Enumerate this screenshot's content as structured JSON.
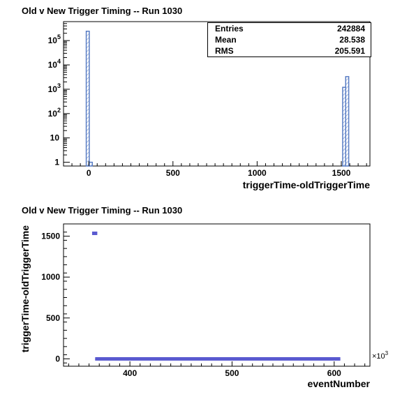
{
  "chart_data": [
    {
      "type": "bar",
      "title": "Old v New Trigger Timing -- Run 1030",
      "xlabel": "triggerTime-oldTriggerTime",
      "ylabel": "",
      "xlim": [
        -150,
        1670
      ],
      "ylim": [
        0.7,
        600000
      ],
      "log_y": true,
      "x_ticks": [
        0,
        500,
        1000,
        1500
      ],
      "y_ticks": [
        {
          "value": 1,
          "base": "1",
          "exp": ""
        },
        {
          "value": 10,
          "base": "10",
          "exp": ""
        },
        {
          "value": 100,
          "base": "10",
          "exp": "2"
        },
        {
          "value": 1000,
          "base": "10",
          "exp": "3"
        },
        {
          "value": 10000,
          "base": "10",
          "exp": "4"
        },
        {
          "value": 100000,
          "base": "10",
          "exp": "5"
        }
      ],
      "bins": [
        {
          "x0": -15,
          "x1": 3,
          "count": 242000
        },
        {
          "x0": 3,
          "x1": 21,
          "count": 1
        },
        {
          "x0": 1508,
          "x1": 1526,
          "count": 1200
        },
        {
          "x0": 1526,
          "x1": 1544,
          "count": 3300
        }
      ],
      "stats": [
        {
          "label": "Entries",
          "value": "242884"
        },
        {
          "label": "Mean",
          "value": "28.538"
        },
        {
          "label": "RMS",
          "value": "205.591"
        }
      ],
      "grid": false,
      "colors": {
        "line": "#5a7ec4",
        "hatch": "#5a7ec4"
      }
    },
    {
      "type": "scatter",
      "title": "Old v New Trigger Timing -- Run 1030",
      "xlabel": "eventNumber",
      "ylabel": "triggerTime-oldTriggerTime",
      "x_multiplier": "×10",
      "x_multiplier_exp": "3",
      "xlim": [
        335,
        635
      ],
      "ylim": [
        -90,
        1650
      ],
      "x_ticks": [
        400,
        500,
        600
      ],
      "y_ticks": [
        0,
        500,
        1000,
        1500
      ],
      "clusters": [
        {
          "x0": 363,
          "x1": 368,
          "y": 1535,
          "y_spread": 20
        },
        {
          "x0": 366,
          "x1": 606,
          "y": 0,
          "y_spread": 8
        }
      ],
      "grid": false,
      "colors": {
        "marker": "#5a5ad0"
      }
    }
  ]
}
